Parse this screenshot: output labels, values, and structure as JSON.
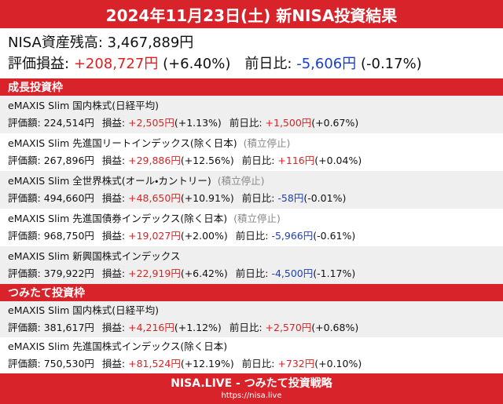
{
  "header": {
    "title": "2024年11月23日(土) 新NISA投資結果"
  },
  "summary": {
    "balance_label": "NISA資産残高:",
    "balance": "3,467,889円",
    "gain_label": "評価損益:",
    "gain": "+208,727円",
    "gain_pct": "(+6.40%)",
    "day_label": "前日比:",
    "day": "-5,606円",
    "day_pct": "(-0.17%)"
  },
  "labels": {
    "value": "評価額:",
    "gain": "損益:",
    "day": "前日比:"
  },
  "sections": [
    {
      "title": "成長投資枠",
      "funds": [
        {
          "name": "eMAXIS Slim 国内株式(日経平均)",
          "value": "224,514円",
          "gain": "+2,505円",
          "gain_pct": "(+1.13%)",
          "day": "+1,500円",
          "day_pct": "(+0.67%)"
        },
        {
          "name": "eMAXIS Slim 先進国リートインデックス(除く日本)",
          "status": "(積立停止)",
          "value": "267,896円",
          "gain": "+29,886円",
          "gain_pct": "(+12.56%)",
          "day": "+116円",
          "day_pct": "(+0.04%)"
        },
        {
          "name": "eMAXIS Slim 全世界株式(オール・カントリー)",
          "status": "(積立停止)",
          "value": "494,660円",
          "gain": "+48,650円",
          "gain_pct": "(+10.91%)",
          "day": "-58円",
          "day_pct": "(-0.01%)"
        },
        {
          "name": "eMAXIS Slim 先進国債券インデックス(除く日本)",
          "status": "(積立停止)",
          "value": "968,750円",
          "gain": "+19,027円",
          "gain_pct": "(+2.00%)",
          "day": "-5,966円",
          "day_pct": "(-0.61%)"
        },
        {
          "name": "eMAXIS Slim 新興国株式インデックス",
          "value": "379,922円",
          "gain": "+22,919円",
          "gain_pct": "(+6.42%)",
          "day": "-4,500円",
          "day_pct": "(-1.17%)"
        }
      ]
    },
    {
      "title": "つみたて投資枠",
      "funds": [
        {
          "name": "eMAXIS Slim 国内株式(日経平均)",
          "value": "381,617円",
          "gain": "+4,216円",
          "gain_pct": "(+1.12%)",
          "day": "+2,570円",
          "day_pct": "(+0.68%)"
        },
        {
          "name": "eMAXIS Slim 先進国株式インデックス(除く日本)",
          "value": "750,530円",
          "gain": "+81,524円",
          "gain_pct": "(+12.19%)",
          "day": "+732円",
          "day_pct": "(+0.10%)"
        }
      ]
    }
  ],
  "footer": {
    "brand": "NISA.LIVE - つみたて投資戦略",
    "url": "https://nisa.live"
  }
}
